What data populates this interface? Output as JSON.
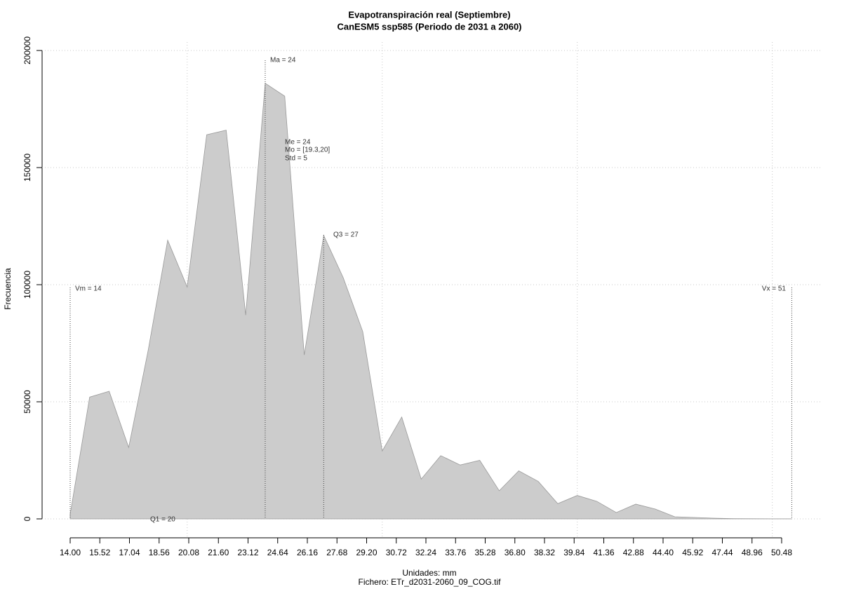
{
  "chart_data": {
    "type": "area",
    "title": "Evapotranspiración real (Septiembre)",
    "subtitle": "CanESM5 ssp585 (Periodo de 2031 a 2060)",
    "x_label": "Unidades: mm",
    "caption": "Fichero: ETr_d2031-2060_09_COG.tif",
    "y_label": "Frecuencia",
    "x": [
      14,
      15,
      16,
      17,
      18,
      19,
      20,
      21,
      22,
      23,
      24,
      25,
      26,
      27,
      28,
      29,
      30,
      31,
      32,
      33,
      34,
      35,
      36,
      37,
      38,
      39,
      40,
      41,
      42,
      43,
      44,
      45,
      46,
      47,
      48,
      49,
      50,
      51
    ],
    "series": [
      {
        "color": "#cccccc",
        "values": [
          2000,
          52000,
          54500,
          30500,
          72000,
          119000,
          99000,
          164000,
          166000,
          87000,
          186000,
          180500,
          70000,
          121000,
          103000,
          80000,
          29000,
          43500,
          17000,
          27000,
          23000,
          25000,
          12000,
          20500,
          16000,
          6500,
          10000,
          7500,
          2700,
          6300,
          4200,
          900,
          600,
          300,
          100,
          50,
          30,
          20
        ]
      }
    ],
    "xlim": [
      14,
      50.48
    ],
    "xticks": [
      {
        "value": 14,
        "label": "14.00"
      },
      {
        "value": 15.52,
        "label": "15.52"
      },
      {
        "value": 17.04,
        "label": "17.04"
      },
      {
        "value": 18.56,
        "label": "18.56"
      },
      {
        "value": 20.08,
        "label": "20.08"
      },
      {
        "value": 21.6,
        "label": "21.60"
      },
      {
        "value": 23.12,
        "label": "23.12"
      },
      {
        "value": 24.64,
        "label": "24.64"
      },
      {
        "value": 26.16,
        "label": "26.16"
      },
      {
        "value": 27.68,
        "label": "27.68"
      },
      {
        "value": 29.2,
        "label": "29.20"
      },
      {
        "value": 30.72,
        "label": "30.72"
      },
      {
        "value": 32.24,
        "label": "32.24"
      },
      {
        "value": 33.76,
        "label": "33.76"
      },
      {
        "value": 35.28,
        "label": "35.28"
      },
      {
        "value": 36.8,
        "label": "36.80"
      },
      {
        "value": 38.32,
        "label": "38.32"
      },
      {
        "value": 39.84,
        "label": "39.84"
      },
      {
        "value": 41.36,
        "label": "41.36"
      },
      {
        "value": 42.88,
        "label": "42.88"
      },
      {
        "value": 44.4,
        "label": "44.40"
      },
      {
        "value": 45.92,
        "label": "45.92"
      },
      {
        "value": 47.44,
        "label": "47.44"
      },
      {
        "value": 48.96,
        "label": "48.96"
      },
      {
        "value": 50.48,
        "label": "50.48"
      }
    ],
    "xgrid": [
      20,
      30,
      40,
      50
    ],
    "ylim": [
      0,
      200000
    ],
    "yticks": [
      0,
      50000,
      100000,
      150000,
      200000
    ],
    "grid": true,
    "vlines": [
      14,
      24,
      27,
      51
    ],
    "annotations": [
      "Ma = 24",
      "Me = 24",
      "Mo = [19.3,20]",
      "Std = 5",
      "Q3 = 27",
      "Vm = 14",
      "Vx = 51",
      "Q1 = 20"
    ]
  }
}
